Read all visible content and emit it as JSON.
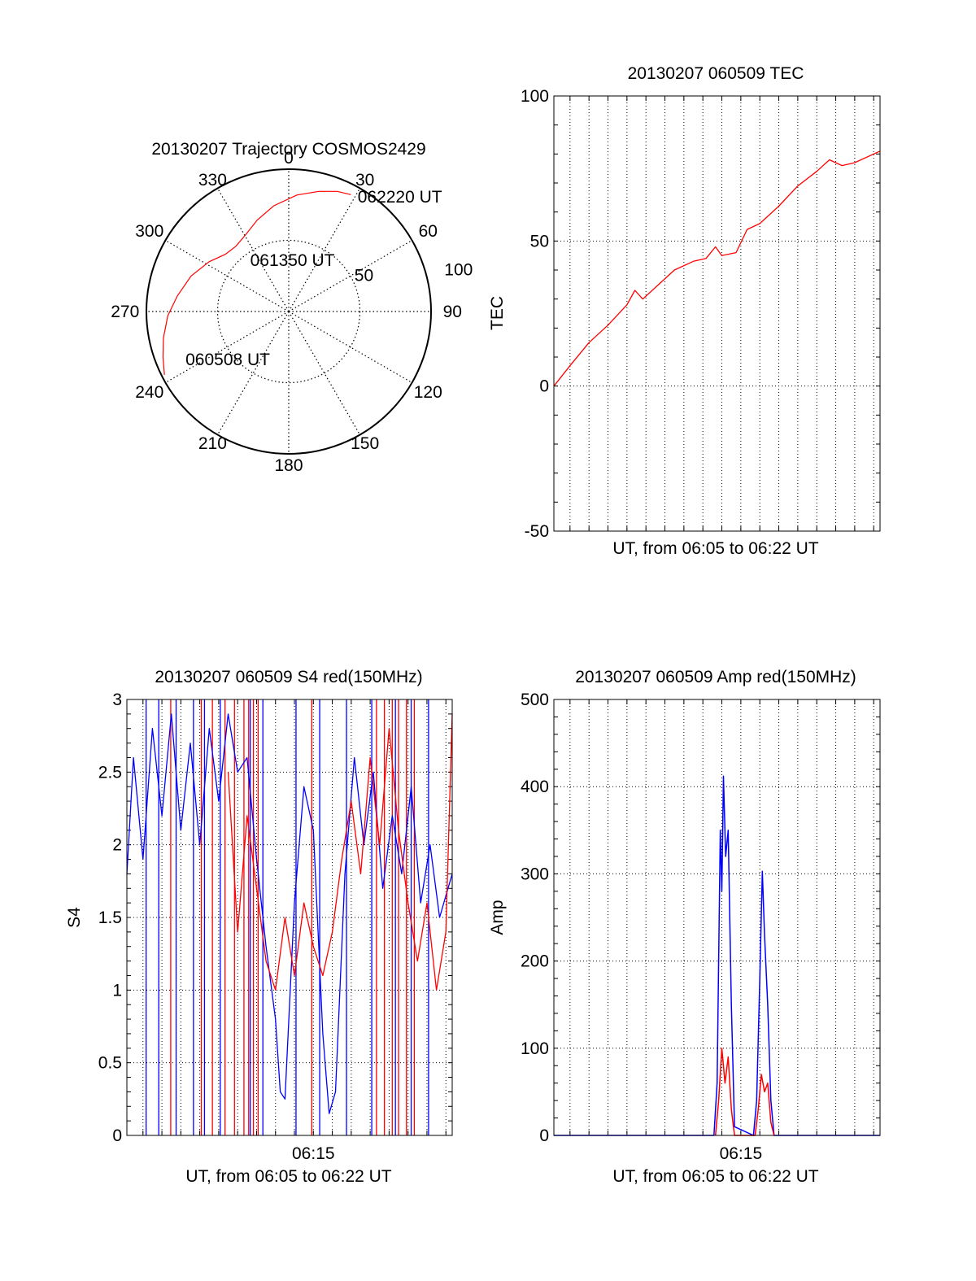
{
  "chart_data": [
    {
      "type": "polar",
      "title": "20130207 Trajectory COSMOS2429",
      "angle_labels": [
        "0",
        "30",
        "60",
        "90",
        "120",
        "150",
        "180",
        "210",
        "240",
        "270",
        "300",
        "330"
      ],
      "radial_labels": [
        "50",
        "100"
      ],
      "radial_range": [
        0,
        100
      ],
      "grid": true,
      "trajectory": {
        "color": "#ff0000",
        "points": [
          {
            "az": 243,
            "r": 98
          },
          {
            "az": 250,
            "r": 94
          },
          {
            "az": 258,
            "r": 90
          },
          {
            "az": 268,
            "r": 85
          },
          {
            "az": 278,
            "r": 79
          },
          {
            "az": 290,
            "r": 73
          },
          {
            "az": 302,
            "r": 66
          },
          {
            "az": 312,
            "r": 60
          },
          {
            "az": 321,
            "r": 59
          },
          {
            "az": 331,
            "r": 62
          },
          {
            "az": 341,
            "r": 68
          },
          {
            "az": 352,
            "r": 75
          },
          {
            "az": 4,
            "r": 82
          },
          {
            "az": 14,
            "r": 87
          },
          {
            "az": 22,
            "r": 91
          },
          {
            "az": 28,
            "r": 93
          }
        ]
      },
      "annotations": [
        {
          "text": "062220 UT",
          "az": 31,
          "r": 94
        },
        {
          "text": "061350 UT",
          "az": 323,
          "r": 45
        },
        {
          "text": "060508 UT",
          "az": 245,
          "r": 80
        }
      ]
    },
    {
      "type": "line",
      "title": "20130207 060509 TEC",
      "xlabel": "UT, from 06:05 to 06:22 UT",
      "ylabel": "TEC",
      "xlim": [
        "06:05:09",
        "06:22:20"
      ],
      "ylim": [
        -50,
        100
      ],
      "yticks": [
        "-50",
        "0",
        "50",
        "100"
      ],
      "grid": true,
      "series": [
        {
          "color": "#ff0000",
          "points": [
            {
              "x": "06:05:09",
              "y": 0
            },
            {
              "x": "06:06:00",
              "y": 7
            },
            {
              "x": "06:07:00",
              "y": 15
            },
            {
              "x": "06:08:00",
              "y": 21
            },
            {
              "x": "06:09:00",
              "y": 28
            },
            {
              "x": "06:09:25",
              "y": 33
            },
            {
              "x": "06:09:50",
              "y": 30
            },
            {
              "x": "06:10:30",
              "y": 34
            },
            {
              "x": "06:11:30",
              "y": 40
            },
            {
              "x": "06:12:30",
              "y": 43
            },
            {
              "x": "06:13:10",
              "y": 44
            },
            {
              "x": "06:13:40",
              "y": 48
            },
            {
              "x": "06:14:00",
              "y": 45
            },
            {
              "x": "06:14:45",
              "y": 46
            },
            {
              "x": "06:15:20",
              "y": 54
            },
            {
              "x": "06:16:00",
              "y": 56
            },
            {
              "x": "06:17:00",
              "y": 62
            },
            {
              "x": "06:18:00",
              "y": 69
            },
            {
              "x": "06:19:00",
              "y": 74
            },
            {
              "x": "06:19:40",
              "y": 78
            },
            {
              "x": "06:20:20",
              "y": 76
            },
            {
              "x": "06:21:00",
              "y": 77
            },
            {
              "x": "06:22:20",
              "y": 81
            }
          ]
        }
      ]
    },
    {
      "type": "line",
      "title": "20130207 060509 S4 red(150MHz)",
      "xlabel": "UT, from 06:05 to 06:22 UT",
      "ylabel": "S4",
      "xlim": [
        "06:05:09",
        "06:22:20"
      ],
      "ylim": [
        0,
        3
      ],
      "yticks": [
        "0",
        "0.5",
        "1",
        "1.5",
        "2",
        "2.5",
        "3"
      ],
      "xticks": [
        "06:15"
      ],
      "grid": true,
      "series": [
        {
          "color": "#0000ff",
          "points": [
            {
              "x": "06:05:09",
              "y": 1.8
            },
            {
              "x": "06:05:30",
              "y": 2.6
            },
            {
              "x": "06:06:00",
              "y": 1.9
            },
            {
              "x": "06:06:30",
              "y": 2.8
            },
            {
              "x": "06:07:00",
              "y": 2.2
            },
            {
              "x": "06:07:30",
              "y": 2.9
            },
            {
              "x": "06:08:00",
              "y": 2.1
            },
            {
              "x": "06:08:30",
              "y": 2.7
            },
            {
              "x": "06:09:00",
              "y": 2.0
            },
            {
              "x": "06:09:30",
              "y": 2.8
            },
            {
              "x": "06:10:00",
              "y": 2.3
            },
            {
              "x": "06:10:30",
              "y": 2.9
            },
            {
              "x": "06:11:00",
              "y": 2.5
            },
            {
              "x": "06:11:30",
              "y": 2.6
            },
            {
              "x": "06:12:00",
              "y": 1.9
            },
            {
              "x": "06:12:30",
              "y": 1.3
            },
            {
              "x": "06:13:00",
              "y": 0.8
            },
            {
              "x": "06:13:15",
              "y": 0.3
            },
            {
              "x": "06:13:30",
              "y": 0.25
            },
            {
              "x": "06:14:00",
              "y": 1.6
            },
            {
              "x": "06:14:30",
              "y": 2.4
            },
            {
              "x": "06:15:00",
              "y": 2.1
            },
            {
              "x": "06:15:30",
              "y": 0.7
            },
            {
              "x": "06:15:50",
              "y": 0.15
            },
            {
              "x": "06:16:10",
              "y": 0.3
            },
            {
              "x": "06:16:40",
              "y": 1.8
            },
            {
              "x": "06:17:10",
              "y": 2.6
            },
            {
              "x": "06:17:40",
              "y": 2.0
            },
            {
              "x": "06:18:10",
              "y": 2.5
            },
            {
              "x": "06:18:40",
              "y": 1.7
            },
            {
              "x": "06:19:10",
              "y": 2.2
            },
            {
              "x": "06:19:40",
              "y": 1.8
            },
            {
              "x": "06:20:10",
              "y": 2.4
            },
            {
              "x": "06:20:40",
              "y": 1.6
            },
            {
              "x": "06:21:10",
              "y": 2.0
            },
            {
              "x": "06:21:40",
              "y": 1.5
            },
            {
              "x": "06:22:20",
              "y": 1.8
            }
          ]
        },
        {
          "color": "#ff0000",
          "points": [
            {
              "x": "06:10:30",
              "y": 2.5
            },
            {
              "x": "06:11:00",
              "y": 1.4
            },
            {
              "x": "06:11:30",
              "y": 2.2
            },
            {
              "x": "06:12:00",
              "y": 1.7
            },
            {
              "x": "06:12:30",
              "y": 1.2
            },
            {
              "x": "06:13:00",
              "y": 1.0
            },
            {
              "x": "06:13:30",
              "y": 1.5
            },
            {
              "x": "06:14:00",
              "y": 1.1
            },
            {
              "x": "06:14:30",
              "y": 1.6
            },
            {
              "x": "06:15:00",
              "y": 1.3
            },
            {
              "x": "06:15:30",
              "y": 1.1
            },
            {
              "x": "06:16:00",
              "y": 1.4
            },
            {
              "x": "06:16:30",
              "y": 1.9
            },
            {
              "x": "06:17:00",
              "y": 2.3
            },
            {
              "x": "06:17:30",
              "y": 1.8
            },
            {
              "x": "06:18:00",
              "y": 2.6
            },
            {
              "x": "06:18:30",
              "y": 2.0
            },
            {
              "x": "06:19:00",
              "y": 2.8
            },
            {
              "x": "06:19:30",
              "y": 2.1
            },
            {
              "x": "06:20:00",
              "y": 1.6
            },
            {
              "x": "06:20:30",
              "y": 1.2
            },
            {
              "x": "06:21:00",
              "y": 1.6
            },
            {
              "x": "06:21:30",
              "y": 1.0
            },
            {
              "x": "06:22:00",
              "y": 1.4
            },
            {
              "x": "06:22:20",
              "y": 2.9
            }
          ]
        }
      ],
      "spikes_to_zero": [
        {
          "color": "#0000ff",
          "x": [
            "06:06:10",
            "06:06:50",
            "06:07:45",
            "06:08:40",
            "06:09:15",
            "06:10:05",
            "06:11:40",
            "06:12:20",
            "06:14:05",
            "06:15:20",
            "06:16:45",
            "06:18:05",
            "06:19:20",
            "06:20:10",
            "06:21:05"
          ]
        },
        {
          "color": "#ff0000",
          "x": [
            "06:07:28",
            "06:09:05",
            "06:09:40",
            "06:10:20",
            "06:10:50",
            "06:11:20",
            "06:11:35",
            "06:11:50",
            "06:12:05",
            "06:14:55",
            "06:18:20",
            "06:18:45",
            "06:19:10",
            "06:19:30",
            "06:19:55",
            "06:20:20"
          ]
        }
      ]
    },
    {
      "type": "line",
      "title": "20130207 060509 Amp red(150MHz)",
      "xlabel": "UT, from 06:05 to 06:22 UT",
      "ylabel": "Amp",
      "xlim": [
        "06:05:09",
        "06:22:20"
      ],
      "ylim": [
        0,
        500
      ],
      "yticks": [
        "0",
        "100",
        "200",
        "300",
        "400",
        "500"
      ],
      "xticks": [
        "06:15"
      ],
      "grid": true,
      "series": [
        {
          "color": "#0000ff",
          "points": [
            {
              "x": "06:05:09",
              "y": 0
            },
            {
              "x": "06:13:35",
              "y": 0
            },
            {
              "x": "06:13:45",
              "y": 60
            },
            {
              "x": "06:13:55",
              "y": 350
            },
            {
              "x": "06:14:00",
              "y": 280
            },
            {
              "x": "06:14:05",
              "y": 412
            },
            {
              "x": "06:14:12",
              "y": 320
            },
            {
              "x": "06:14:20",
              "y": 350
            },
            {
              "x": "06:14:30",
              "y": 150
            },
            {
              "x": "06:14:40",
              "y": 10
            },
            {
              "x": "06:15:40",
              "y": 0
            },
            {
              "x": "06:15:50",
              "y": 40
            },
            {
              "x": "06:16:00",
              "y": 180
            },
            {
              "x": "06:16:08",
              "y": 303
            },
            {
              "x": "06:16:15",
              "y": 230
            },
            {
              "x": "06:16:25",
              "y": 150
            },
            {
              "x": "06:16:35",
              "y": 40
            },
            {
              "x": "06:16:45",
              "y": 0
            },
            {
              "x": "06:22:20",
              "y": 0
            }
          ]
        },
        {
          "color": "#ff0000",
          "points": [
            {
              "x": "06:13:40",
              "y": 0
            },
            {
              "x": "06:13:50",
              "y": 40
            },
            {
              "x": "06:14:00",
              "y": 100
            },
            {
              "x": "06:14:10",
              "y": 60
            },
            {
              "x": "06:14:20",
              "y": 90
            },
            {
              "x": "06:14:30",
              "y": 30
            },
            {
              "x": "06:14:40",
              "y": 0
            },
            {
              "x": "06:15:45",
              "y": 0
            },
            {
              "x": "06:15:55",
              "y": 30
            },
            {
              "x": "06:16:05",
              "y": 70
            },
            {
              "x": "06:16:15",
              "y": 50
            },
            {
              "x": "06:16:25",
              "y": 60
            },
            {
              "x": "06:16:35",
              "y": 15
            },
            {
              "x": "06:16:45",
              "y": 0
            }
          ]
        }
      ]
    }
  ]
}
